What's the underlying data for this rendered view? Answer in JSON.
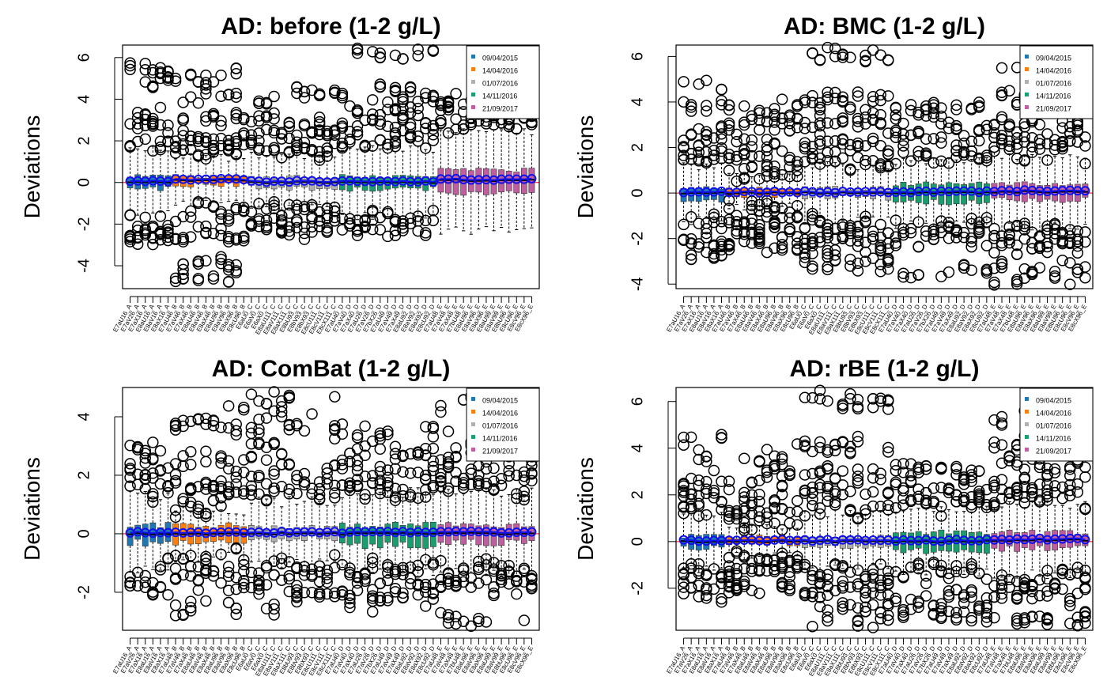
{
  "legend": {
    "entries": [
      "09/04/2015",
      "14/04/2016",
      "01/07/2016",
      "14/11/2016",
      "21/09/2017"
    ],
    "colors": [
      "#1f77b4",
      "#ff7f0e",
      "#b0b0b0",
      "#1a9e6e",
      "#c05fa0"
    ],
    "placement": "top-right"
  },
  "sample_labels": [
    "E7aU16_A",
    "E7aV26_A",
    "E7aX16_A",
    "E8aU16_A",
    "E8aV16_A",
    "E8aX16_A",
    "E7aU46_B",
    "E7aV46_B",
    "E7aX46_B",
    "E8aU46_B",
    "E8aV46_B",
    "E8aX46_B",
    "E8aU96_B",
    "E8aV96_B",
    "E8aX96_B",
    "E8cU96_B",
    "E6aU0_C",
    "E6aV0_C",
    "E6aX0_C",
    "E8aU111_C",
    "E8aV111_C",
    "E8aX111_C",
    "E8bU93_C",
    "E8bV93_C",
    "E8bX93_C",
    "E8cU111_C",
    "E8cV111_C",
    "E8cX111_C",
    "E7aU40_D",
    "E7aV40_D",
    "E7aX40_D",
    "E7aU26_D",
    "E7aV26_D",
    "E7bX26_D",
    "E7aU49_D",
    "E7aV49_D",
    "E7aX49_D",
    "E8aU92_D",
    "E8aV92_D",
    "E8aX92_D",
    "E8cU92_D",
    "E7aU48_E",
    "E7aV48_E",
    "E7aX48_E",
    "E7bU48_E",
    "E8aU96_E",
    "E8aV96_E",
    "E8aX96_E",
    "E8aU99_E",
    "E8aV99_E",
    "E8bU96_E",
    "E8cU96_E",
    "E8cV96_E",
    "E8cX96_E"
  ],
  "group_sizes": [
    6,
    10,
    12,
    13,
    13
  ],
  "axis_color_ref": "#ff0000",
  "chart_data": [
    {
      "type": "box",
      "title": "AD: before (1-2 g/L)",
      "ylabel": "Deviations",
      "ylim": [
        -5.1,
        6.6
      ],
      "yticks": [
        -4,
        -2,
        0,
        2,
        4,
        6
      ],
      "reference_line": 0,
      "series": [
        {
          "name": "09/04/2015",
          "median": 0.0,
          "q1": -0.3,
          "q3": 0.3,
          "whisker_low": -1.5,
          "whisker_high": 1.6,
          "outliers_high": [
            1.8,
            2.6,
            3.2,
            4.8,
            5.4
          ],
          "outliers_low": [
            -1.9,
            -2.5,
            -2.7
          ]
        },
        {
          "name": "14/04/2016",
          "median": 0.1,
          "q1": -0.1,
          "q3": 0.3,
          "whisker_low": -1.0,
          "whisker_high": 1.2,
          "outliers_high": [
            1.4,
            2.0,
            3.0,
            4.2,
            5.1
          ],
          "outliers_low": [
            -1.4,
            -2.6,
            -3.8,
            -4.7
          ]
        },
        {
          "name": "01/07/2016",
          "median": 0.0,
          "q1": -0.25,
          "q3": 0.25,
          "whisker_low": -1.2,
          "whisker_high": 1.3,
          "outliers_high": [
            1.6,
            2.3,
            2.9,
            4.3
          ],
          "outliers_low": [
            -1.4,
            -1.9,
            -2.3
          ]
        },
        {
          "name": "14/11/2016",
          "median": 0.0,
          "q1": -0.3,
          "q3": 0.3,
          "whisker_low": -1.6,
          "whisker_high": 1.6,
          "outliers_high": [
            2.0,
            2.8,
            3.4,
            4.2,
            6.3
          ],
          "outliers_low": [
            -1.8,
            -2.2
          ]
        },
        {
          "name": "21/09/2017",
          "median": 0.1,
          "q1": -0.5,
          "q3": 0.6,
          "whisker_low": -2.3,
          "whisker_high": 2.4,
          "outliers_high": [
            2.8,
            3.4,
            4.0
          ],
          "outliers_low": []
        }
      ]
    },
    {
      "type": "box",
      "title": "AD: BMC (1-2 g/L)",
      "ylabel": "Deviations",
      "ylim": [
        -4.2,
        6.5
      ],
      "yticks": [
        -4,
        -2,
        0,
        2,
        4,
        6
      ],
      "reference_line": 0,
      "series": [
        {
          "name": "09/04/2015",
          "median": 0.0,
          "q1": -0.3,
          "q3": 0.25,
          "whisker_low": -1.2,
          "whisker_high": 1.2,
          "outliers_high": [
            1.4,
            2.0,
            2.6,
            3.6,
            4.7
          ],
          "outliers_low": [
            -1.3,
            -2.2,
            -2.5
          ]
        },
        {
          "name": "14/04/2016",
          "median": 0.0,
          "q1": -0.1,
          "q3": 0.2,
          "whisker_low": -0.6,
          "whisker_high": 0.7,
          "outliers_high": [
            0.9,
            1.4,
            2.2,
            3.0,
            3.6
          ],
          "outliers_low": [
            -0.8,
            -1.3,
            -1.8,
            -2.3
          ]
        },
        {
          "name": "01/07/2016",
          "median": 0.0,
          "q1": -0.2,
          "q3": 0.2,
          "whisker_low": -1.2,
          "whisker_high": 1.2,
          "outliers_high": [
            1.4,
            2.2,
            3.0,
            4.1,
            6.1
          ],
          "outliers_low": [
            -1.4,
            -2.0,
            -2.6,
            -3.1
          ]
        },
        {
          "name": "14/11/2016",
          "median": 0.0,
          "q1": -0.4,
          "q3": 0.4,
          "whisker_low": -1.4,
          "whisker_high": 1.4,
          "outliers_high": [
            1.6,
            2.4,
            3.0,
            3.7
          ],
          "outliers_low": [
            -1.5,
            -1.9,
            -3.6
          ]
        },
        {
          "name": "21/09/2017",
          "median": 0.05,
          "q1": -0.3,
          "q3": 0.4,
          "whisker_low": -1.5,
          "whisker_high": 1.6,
          "outliers_high": [
            1.8,
            2.4,
            3.0,
            4.2,
            5.5
          ],
          "outliers_low": [
            -1.7,
            -2.2,
            -3.3,
            -3.6
          ]
        }
      ]
    },
    {
      "type": "box",
      "title": "AD: ComBat (1-2 g/L)",
      "ylabel": "Deviations",
      "ylim": [
        -3.3,
        5.0
      ],
      "yticks": [
        -2,
        0,
        2,
        4
      ],
      "reference_line": 0,
      "series": [
        {
          "name": "09/04/2015",
          "median": 0.0,
          "q1": -0.3,
          "q3": 0.3,
          "whisker_low": -1.2,
          "whisker_high": 1.3,
          "outliers_high": [
            1.5,
            2.0,
            2.6,
            2.9
          ],
          "outliers_low": [
            -1.3,
            -1.9
          ]
        },
        {
          "name": "14/04/2016",
          "median": 0.0,
          "q1": -0.3,
          "q3": 0.3,
          "whisker_low": -0.8,
          "whisker_high": 0.8,
          "outliers_high": [
            1.0,
            1.6,
            2.4,
            3.6,
            4.1
          ],
          "outliers_low": [
            -1.0,
            -1.5,
            -2.4
          ]
        },
        {
          "name": "01/07/2016",
          "median": 0.0,
          "q1": -0.2,
          "q3": 0.2,
          "whisker_low": -1.0,
          "whisker_high": 1.1,
          "outliers_high": [
            1.4,
            2.0,
            2.8,
            3.8,
            4.8
          ],
          "outliers_low": [
            -1.2,
            -1.8,
            -2.3
          ]
        },
        {
          "name": "14/11/2016",
          "median": 0.0,
          "q1": -0.4,
          "q3": 0.3,
          "whisker_low": -1.3,
          "whisker_high": 1.4,
          "outliers_high": [
            1.6,
            2.2,
            2.9,
            3.5
          ],
          "outliers_low": [
            -1.3,
            -1.8,
            -2.2
          ]
        },
        {
          "name": "21/09/2017",
          "median": 0.0,
          "q1": -0.3,
          "q3": 0.3,
          "whisker_low": -1.3,
          "whisker_high": 1.4,
          "outliers_high": [
            1.6,
            2.0,
            2.6,
            3.3,
            4.6
          ],
          "outliers_low": [
            -1.3,
            -1.7,
            -3.0
          ]
        }
      ]
    },
    {
      "type": "box",
      "title": "AD: rBE (1-2 g/L)",
      "ylabel": "Deviations",
      "ylim": [
        -3.8,
        6.6
      ],
      "yticks": [
        -2,
        0,
        2,
        4,
        6
      ],
      "reference_line": 0,
      "series": [
        {
          "name": "09/04/2015",
          "median": 0.0,
          "q1": -0.3,
          "q3": 0.25,
          "whisker_low": -1.2,
          "whisker_high": 1.2,
          "outliers_high": [
            1.4,
            2.0,
            2.6,
            3.5,
            4.6
          ],
          "outliers_low": [
            -1.3,
            -1.9,
            -2.5
          ]
        },
        {
          "name": "14/04/2016",
          "median": 0.0,
          "q1": -0.1,
          "q3": 0.2,
          "whisker_low": -0.6,
          "whisker_high": 0.7,
          "outliers_high": [
            0.9,
            1.4,
            2.0,
            2.9,
            3.8
          ],
          "outliers_low": [
            -0.8,
            -1.3,
            -1.8,
            -2.2
          ]
        },
        {
          "name": "01/07/2016",
          "median": 0.0,
          "q1": -0.2,
          "q3": 0.2,
          "whisker_low": -1.1,
          "whisker_high": 1.2,
          "outliers_high": [
            1.5,
            2.3,
            3.0,
            4.1,
            6.1
          ],
          "outliers_low": [
            -1.3,
            -2.0,
            -2.6,
            -3.3
          ]
        },
        {
          "name": "14/11/2016",
          "median": 0.0,
          "q1": -0.4,
          "q3": 0.4,
          "whisker_low": -1.3,
          "whisker_high": 1.4,
          "outliers_high": [
            1.6,
            2.3,
            3.0
          ],
          "outliers_low": [
            -1.4,
            -2.5,
            -3.0
          ]
        },
        {
          "name": "21/09/2017",
          "median": 0.05,
          "q1": -0.3,
          "q3": 0.4,
          "whisker_low": -1.4,
          "whisker_high": 1.6,
          "outliers_high": [
            1.8,
            2.4,
            3.2,
            4.2,
            5.4
          ],
          "outliers_low": [
            -1.6,
            -2.2,
            -3.1,
            -3.5
          ]
        }
      ]
    }
  ]
}
